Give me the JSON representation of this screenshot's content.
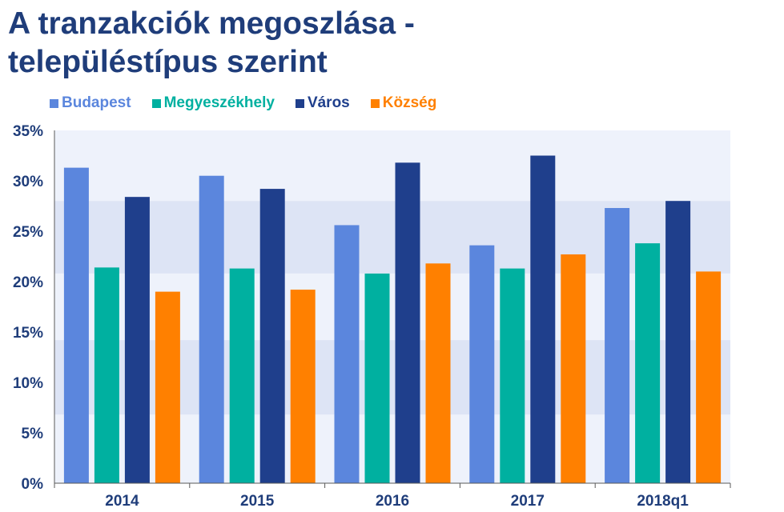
{
  "title_lines": [
    "A tranzakciók megoszlása -",
    "településtípus szerint"
  ],
  "colors": {
    "title": "#1f3d7a",
    "band_light": "#eef2fb",
    "band_dark": "#dde4f5",
    "axis": "#5a5a5a"
  },
  "chart_data": {
    "type": "bar",
    "title": "A tranzakciók megoszlása - településtípus szerint",
    "categories": [
      "2014",
      "2015",
      "2016",
      "2017",
      "2018q1"
    ],
    "series": [
      {
        "name": "Budapest",
        "color": "#5b86dd",
        "values": [
          31.3,
          30.5,
          25.6,
          23.6,
          27.3
        ]
      },
      {
        "name": "Megyeszékhely",
        "color": "#00b0a0",
        "values": [
          21.4,
          21.3,
          20.8,
          21.3,
          23.8
        ]
      },
      {
        "name": "Város",
        "color": "#1f3f8c",
        "values": [
          28.4,
          29.2,
          31.8,
          32.5,
          28.0
        ]
      },
      {
        "name": "Község",
        "color": "#ff8000",
        "values": [
          19.0,
          19.2,
          21.8,
          22.7,
          21.0
        ]
      }
    ],
    "y_ticks": [
      "0%",
      "5%",
      "10%",
      "15%",
      "20%",
      "25%",
      "30%",
      "35%"
    ],
    "ylim": [
      0,
      35
    ],
    "xlabel": "",
    "ylabel": "",
    "legend_position": "top-left",
    "grid": false
  }
}
